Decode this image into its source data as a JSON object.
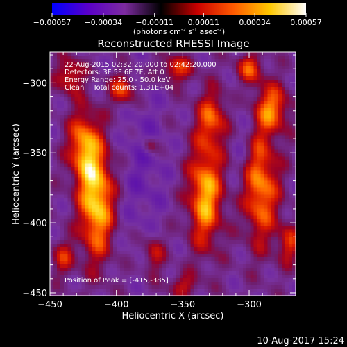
{
  "chart_data": {
    "type": "heatmap",
    "title": "Reconstructed RHESSI Image",
    "xlabel": "Heliocentric X (arcsec)",
    "ylabel": "Heliocentric Y (arcsec)",
    "xlim": [
      -450,
      -265
    ],
    "ylim": [
      -452,
      -278
    ],
    "x_ticks": [
      -450,
      -400,
      -350,
      -300
    ],
    "y_ticks": [
      -450,
      -400,
      -350,
      -300
    ],
    "colorbar": {
      "range": [
        -0.00057,
        0.00057
      ],
      "tick_labels": [
        "-0.00057",
        "-0.00034",
        "-0.00011",
        "0.00011",
        "0.00034",
        "0.00057"
      ],
      "units_text": "(photons cm",
      "units_exp1": "-2",
      "units_mid1": " s",
      "units_exp2": "-1",
      "units_mid2": " asec",
      "units_exp3": "-2",
      "units_end": ")",
      "palette": [
        "#0000ff",
        "#5a00c8",
        "#7d2ba0",
        "#000000",
        "#c80000",
        "#ff5a00",
        "#ffc800",
        "#ffffff"
      ]
    },
    "annotations": {
      "time_range": "22-Aug-2015 02:32:20.000 to 02:42:20.000",
      "detectors": "Detectors: 3F 5F 6F 7F, Att 0",
      "energy_range": "Energy Range: 25.0 - 50.0 keV",
      "clean_line": "Clean    Total counts: 1.31E+04",
      "peak_position": "Position of Peak = [-415,-385]"
    },
    "peak": {
      "x": -415,
      "y": -385
    },
    "sources": [
      {
        "x": -415,
        "y": -385,
        "sx": 9,
        "sy": 28,
        "amp": 1.0
      },
      {
        "x": -425,
        "y": -345,
        "sx": 8,
        "sy": 18,
        "amp": 0.75
      },
      {
        "x": -333,
        "y": -380,
        "sx": 9,
        "sy": 26,
        "amp": 0.9
      },
      {
        "x": -328,
        "y": -325,
        "sx": 8,
        "sy": 14,
        "amp": 0.6
      },
      {
        "x": -292,
        "y": -375,
        "sx": 10,
        "sy": 28,
        "amp": 0.8
      },
      {
        "x": -283,
        "y": -318,
        "sx": 9,
        "sy": 12,
        "amp": 0.7
      },
      {
        "x": -395,
        "y": -305,
        "sx": 7,
        "sy": 8,
        "amp": 0.6
      },
      {
        "x": -435,
        "y": -295,
        "sx": 7,
        "sy": 9,
        "amp": 0.55
      },
      {
        "x": -355,
        "y": -290,
        "sx": 9,
        "sy": 7,
        "amp": 0.55
      },
      {
        "x": -300,
        "y": -290,
        "sx": 7,
        "sy": 8,
        "amp": 0.6
      },
      {
        "x": -270,
        "y": -415,
        "sx": 6,
        "sy": 10,
        "amp": 0.5
      },
      {
        "x": -372,
        "y": -422,
        "sx": 6,
        "sy": 10,
        "amp": 0.45
      },
      {
        "x": -440,
        "y": -425,
        "sx": 6,
        "sy": 9,
        "amp": 0.45
      },
      {
        "x": -375,
        "y": -345,
        "sx": 4,
        "sy": 4,
        "amp": 0.4
      },
      {
        "x": -350,
        "y": -445,
        "sx": 8,
        "sy": 6,
        "amp": 0.4
      }
    ]
  },
  "footer": {
    "timestamp": "10-Aug-2017 15:24"
  }
}
